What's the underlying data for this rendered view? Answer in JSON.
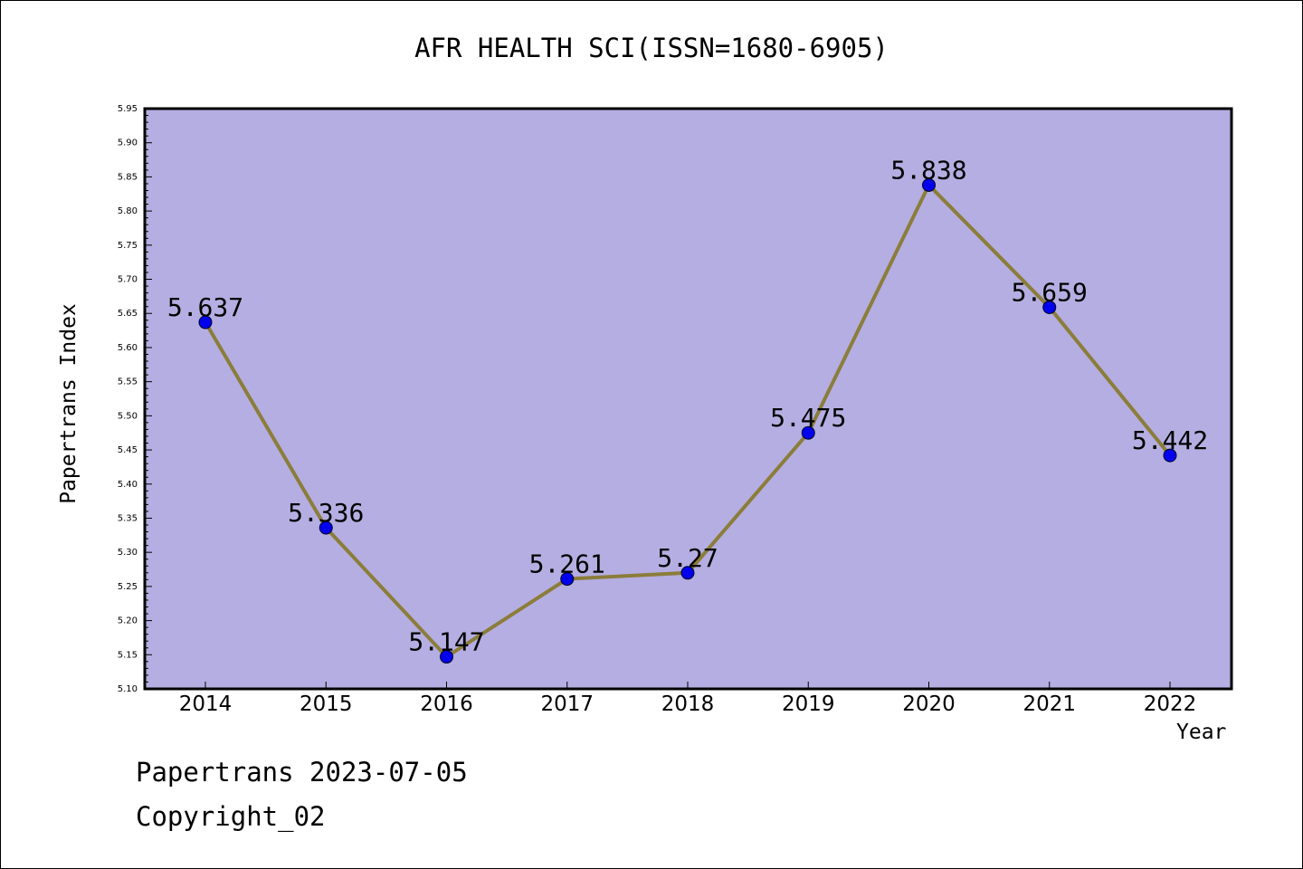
{
  "chart_data": {
    "type": "line",
    "title": "AFR HEALTH SCI(ISSN=1680-6905)",
    "xlabel": "Year",
    "ylabel": "Papertrans Index",
    "categories": [
      "2014",
      "2015",
      "2016",
      "2017",
      "2018",
      "2019",
      "2020",
      "2021",
      "2022"
    ],
    "values": [
      5.637,
      5.336,
      5.147,
      5.261,
      5.27,
      5.475,
      5.838,
      5.659,
      5.442
    ],
    "data_labels": [
      "5.637",
      "5.336",
      "5.147",
      "5.261",
      "5.27",
      "5.475",
      "5.838",
      "5.659",
      "5.442"
    ],
    "ylim": [
      5.1,
      5.95
    ],
    "yticks": [
      "5.10",
      "5.15",
      "5.20",
      "5.25",
      "5.30",
      "5.35",
      "5.40",
      "5.45",
      "5.50",
      "5.55",
      "5.60",
      "5.65",
      "5.70",
      "5.75",
      "5.80",
      "5.85",
      "5.90",
      "5.95"
    ],
    "grid": false,
    "colors": {
      "plot_background": "#b5aee2",
      "line": "#8b7d3a",
      "marker": "#0000ee"
    }
  },
  "footer": {
    "line1": "Papertrans 2023-07-05",
    "line2": "Copyright_02"
  }
}
